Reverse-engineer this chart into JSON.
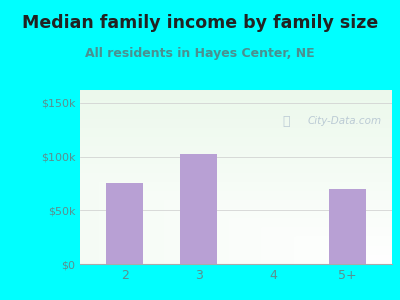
{
  "title": "Median family income by family size",
  "subtitle": "All residents in Hayes Center, NE",
  "categories": [
    "2",
    "3",
    "4",
    "5+"
  ],
  "values": [
    75000,
    102000,
    0,
    70000
  ],
  "bar_color": "#b8a0d4",
  "outer_bg": "#00ffff",
  "yticks": [
    0,
    50000,
    100000,
    150000
  ],
  "ytick_labels": [
    "$0",
    "$50k",
    "$100k",
    "$150k"
  ],
  "ylim": [
    0,
    162000
  ],
  "title_color": "#222222",
  "subtitle_color": "#4a9090",
  "tick_color": "#5a9090",
  "watermark": "City-Data.com",
  "title_fontsize": 12.5,
  "subtitle_fontsize": 9,
  "bar_width": 0.5,
  "plot_bg_color_top": "#ddf0dd",
  "plot_bg_color_bottom": "#f8fff8"
}
